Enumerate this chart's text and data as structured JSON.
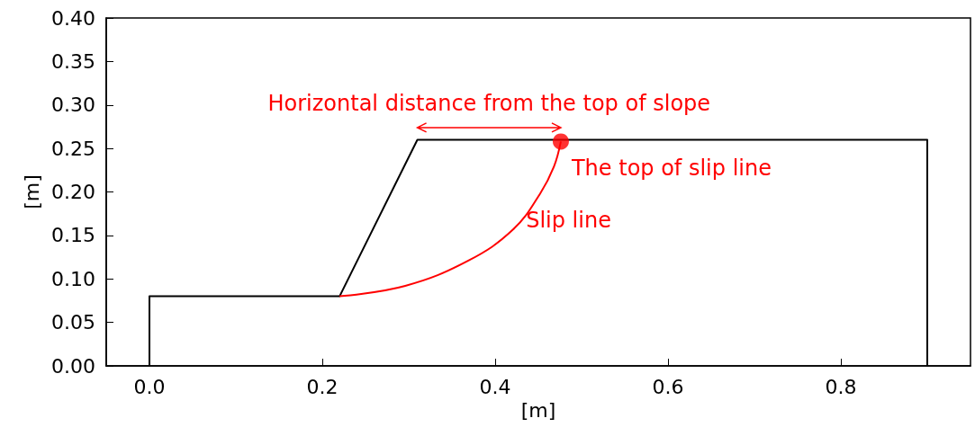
{
  "chart_data": {
    "type": "line",
    "xlabel": "[m]",
    "ylabel": "[m]",
    "xlim": [
      -0.05,
      0.95
    ],
    "xticks": [
      {
        "value": 0,
        "label": "0.0"
      },
      {
        "value": 0.2,
        "label": "0.2"
      },
      {
        "value": 0.4,
        "label": "0.4"
      },
      {
        "value": 0.6,
        "label": "0.6"
      },
      {
        "value": 0.8,
        "label": "0.8"
      }
    ],
    "ylim": [
      0,
      0.4
    ],
    "yticks": [
      {
        "value": 0,
        "label": "0.00"
      },
      {
        "value": 0.05,
        "label": "0.05"
      },
      {
        "value": 0.1,
        "label": "0.10"
      },
      {
        "value": 0.15,
        "label": "0.15"
      },
      {
        "value": 0.2,
        "label": "0.20"
      },
      {
        "value": 0.25,
        "label": "0.25"
      },
      {
        "value": 0.3,
        "label": "0.30"
      },
      {
        "value": 0.35,
        "label": "0.35"
      },
      {
        "value": 0.4,
        "label": "0.40"
      }
    ],
    "grid": false,
    "series": [
      {
        "color": "#000000",
        "marker": "none",
        "x": [
          0,
          0,
          0.22,
          0.31,
          0.9,
          0.9
        ],
        "values": [
          0,
          0.08,
          0.08,
          0.26,
          0.26,
          0
        ]
      },
      {
        "color": "#ff0000",
        "marker": "none",
        "x": [
          0.22,
          0.296,
          0.369,
          0.421,
          0.452,
          0.468,
          0.476
        ],
        "values": [
          0.08,
          0.092,
          0.121,
          0.157,
          0.198,
          0.229,
          0.258
        ]
      },
      {
        "type": "scatter",
        "color": "#ff0000",
        "marker": "circle",
        "x": [
          0.476
        ],
        "values": [
          0.258
        ]
      }
    ],
    "annotations": [
      "Horizontal distance from the top of slope",
      "The top of slip line",
      "Slip line"
    ]
  }
}
